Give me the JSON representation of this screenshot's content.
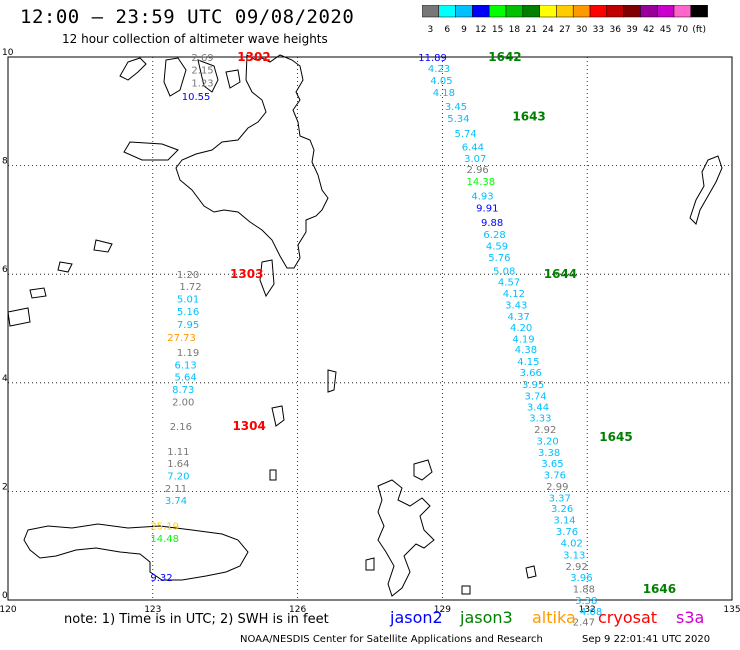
{
  "header": {
    "title": "12:00 – 23:59 UTC 09/08/2020",
    "subtitle": "12 hour collection of altimeter wave heights"
  },
  "colorbar": {
    "labels": [
      "3",
      "6",
      "9",
      "12",
      "15",
      "18",
      "21",
      "24",
      "27",
      "30",
      "33",
      "36",
      "39",
      "42",
      "45",
      "70",
      "(ft)"
    ],
    "colors": [
      "#777777",
      "#00ffff",
      "#00c0ff",
      "#0000ff",
      "#00ff00",
      "#00c000",
      "#008000",
      "#ffff00",
      "#ffcc00",
      "#ff9900",
      "#ff0000",
      "#c00000",
      "#800000",
      "#990099",
      "#cc00cc",
      "#ff66cc",
      "#000000"
    ]
  },
  "axes": {
    "x_ticks": [
      "120",
      "123",
      "126",
      "129",
      "132",
      "135"
    ],
    "y_ticks": [
      "10",
      "8",
      "6",
      "4",
      "2",
      "0"
    ]
  },
  "tracks": [
    {
      "label": "1302",
      "color": "#ff0000",
      "lon": 124.75,
      "lat": 10.0
    },
    {
      "label": "1303",
      "color": "#ff0000",
      "lon": 124.6,
      "lat": 6.0
    },
    {
      "label": "1304",
      "color": "#ff0000",
      "lon": 124.65,
      "lat": 3.2
    },
    {
      "label": "1642",
      "color": "#008000",
      "lon": 129.95,
      "lat": 10.0
    },
    {
      "label": "1643",
      "color": "#008000",
      "lon": 130.45,
      "lat": 8.9
    },
    {
      "label": "1644",
      "color": "#008000",
      "lon": 131.1,
      "lat": 6.0
    },
    {
      "label": "1645",
      "color": "#008000",
      "lon": 132.25,
      "lat": 3.0
    },
    {
      "label": "1646",
      "color": "#008000",
      "lon": 133.15,
      "lat": 0.2
    }
  ],
  "values": [
    {
      "v": "2.69",
      "c": "#777777",
      "lon": 123.8,
      "lat": 10.0
    },
    {
      "v": "2.15",
      "c": "#777777",
      "lon": 123.8,
      "lat": 9.77
    },
    {
      "v": "1.23",
      "c": "#777777",
      "lon": 123.8,
      "lat": 9.53
    },
    {
      "v": "10.55",
      "c": "#0000ff",
      "lon": 123.6,
      "lat": 9.28
    },
    {
      "v": "1.20",
      "c": "#777777",
      "lon": 123.5,
      "lat": 6.0
    },
    {
      "v": "1.72",
      "c": "#777777",
      "lon": 123.55,
      "lat": 5.78
    },
    {
      "v": "5.01",
      "c": "#00c0ff",
      "lon": 123.5,
      "lat": 5.55
    },
    {
      "v": "5.16",
      "c": "#00c0ff",
      "lon": 123.5,
      "lat": 5.32
    },
    {
      "v": "7.95",
      "c": "#00c0ff",
      "lon": 123.5,
      "lat": 5.08
    },
    {
      "v": "27.73",
      "c": "#ff9900",
      "lon": 123.3,
      "lat": 4.84
    },
    {
      "v": "1.19",
      "c": "#777777",
      "lon": 123.5,
      "lat": 4.57
    },
    {
      "v": "6.13",
      "c": "#00c0ff",
      "lon": 123.45,
      "lat": 4.34
    },
    {
      "v": "5.64",
      "c": "#00c0ff",
      "lon": 123.45,
      "lat": 4.12
    },
    {
      "v": "8.73",
      "c": "#00c0ff",
      "lon": 123.4,
      "lat": 3.89
    },
    {
      "v": "2.00",
      "c": "#777777",
      "lon": 123.4,
      "lat": 3.66
    },
    {
      "v": "2.16",
      "c": "#777777",
      "lon": 123.35,
      "lat": 3.2
    },
    {
      "v": "1.11",
      "c": "#777777",
      "lon": 123.3,
      "lat": 2.74
    },
    {
      "v": "1.64",
      "c": "#777777",
      "lon": 123.3,
      "lat": 2.52
    },
    {
      "v": "7.20",
      "c": "#00c0ff",
      "lon": 123.3,
      "lat": 2.29
    },
    {
      "v": "2.11",
      "c": "#777777",
      "lon": 123.25,
      "lat": 2.06
    },
    {
      "v": "3.74",
      "c": "#00c0ff",
      "lon": 123.25,
      "lat": 1.84
    },
    {
      "v": "25.19",
      "c": "#ffcc00",
      "lon": 122.95,
      "lat": 1.37
    },
    {
      "v": "14.48",
      "c": "#00ff00",
      "lon": 122.95,
      "lat": 1.14
    },
    {
      "v": "9.32",
      "c": "#0000ff",
      "lon": 122.95,
      "lat": 0.42
    },
    {
      "v": "11.89",
      "c": "#0000ff",
      "lon": 128.5,
      "lat": 10.0
    },
    {
      "v": "4.23",
      "c": "#00c0ff",
      "lon": 128.7,
      "lat": 9.8
    },
    {
      "v": "4.05",
      "c": "#00c0ff",
      "lon": 128.75,
      "lat": 9.58
    },
    {
      "v": "4.18",
      "c": "#00c0ff",
      "lon": 128.8,
      "lat": 9.36
    },
    {
      "v": "3.45",
      "c": "#00c0ff",
      "lon": 129.05,
      "lat": 9.1
    },
    {
      "v": "5.34",
      "c": "#00c0ff",
      "lon": 129.1,
      "lat": 8.88
    },
    {
      "v": "5.74",
      "c": "#00c0ff",
      "lon": 129.25,
      "lat": 8.6
    },
    {
      "v": "6.44",
      "c": "#00c0ff",
      "lon": 129.4,
      "lat": 8.35
    },
    {
      "v": "3.07",
      "c": "#00c0ff",
      "lon": 129.45,
      "lat": 8.14
    },
    {
      "v": "2.96",
      "c": "#777777",
      "lon": 129.5,
      "lat": 7.94
    },
    {
      "v": "14.38",
      "c": "#00ff00",
      "lon": 129.5,
      "lat": 7.72
    },
    {
      "v": "4.93",
      "c": "#00c0ff",
      "lon": 129.6,
      "lat": 7.45
    },
    {
      "v": "9.91",
      "c": "#0000ff",
      "lon": 129.7,
      "lat": 7.23
    },
    {
      "v": "9.88",
      "c": "#0000ff",
      "lon": 129.8,
      "lat": 6.96
    },
    {
      "v": "6.28",
      "c": "#00c0ff",
      "lon": 129.85,
      "lat": 6.74
    },
    {
      "v": "4.59",
      "c": "#00c0ff",
      "lon": 129.9,
      "lat": 6.53
    },
    {
      "v": "5.76",
      "c": "#00c0ff",
      "lon": 129.95,
      "lat": 6.32
    },
    {
      "v": "5.08",
      "c": "#00c0ff",
      "lon": 130.05,
      "lat": 6.07
    },
    {
      "v": "4.57",
      "c": "#00c0ff",
      "lon": 130.15,
      "lat": 5.87
    },
    {
      "v": "4.12",
      "c": "#00c0ff",
      "lon": 130.25,
      "lat": 5.65
    },
    {
      "v": "3.43",
      "c": "#00c0ff",
      "lon": 130.3,
      "lat": 5.44
    },
    {
      "v": "4.37",
      "c": "#00c0ff",
      "lon": 130.35,
      "lat": 5.23
    },
    {
      "v": "4.20",
      "c": "#00c0ff",
      "lon": 130.4,
      "lat": 5.03
    },
    {
      "v": "4.19",
      "c": "#00c0ff",
      "lon": 130.45,
      "lat": 4.82
    },
    {
      "v": "4.38",
      "c": "#00c0ff",
      "lon": 130.5,
      "lat": 4.62
    },
    {
      "v": "4.15",
      "c": "#00c0ff",
      "lon": 130.55,
      "lat": 4.4
    },
    {
      "v": "3.66",
      "c": "#00c0ff",
      "lon": 130.6,
      "lat": 4.2
    },
    {
      "v": "3.95",
      "c": "#00c0ff",
      "lon": 130.65,
      "lat": 3.98
    },
    {
      "v": "3.74",
      "c": "#00c0ff",
      "lon": 130.7,
      "lat": 3.77
    },
    {
      "v": "3.44",
      "c": "#00c0ff",
      "lon": 130.75,
      "lat": 3.56
    },
    {
      "v": "3.33",
      "c": "#00c0ff",
      "lon": 130.8,
      "lat": 3.36
    },
    {
      "v": "2.92",
      "c": "#777777",
      "lon": 130.9,
      "lat": 3.15
    },
    {
      "v": "3.20",
      "c": "#00c0ff",
      "lon": 130.95,
      "lat": 2.94
    },
    {
      "v": "3.38",
      "c": "#00c0ff",
      "lon": 130.98,
      "lat": 2.73
    },
    {
      "v": "3.65",
      "c": "#00c0ff",
      "lon": 131.05,
      "lat": 2.52
    },
    {
      "v": "3.76",
      "c": "#00c0ff",
      "lon": 131.1,
      "lat": 2.31
    },
    {
      "v": "2.99",
      "c": "#777777",
      "lon": 131.15,
      "lat": 2.1
    },
    {
      "v": "3.37",
      "c": "#00c0ff",
      "lon": 131.2,
      "lat": 1.89
    },
    {
      "v": "3.26",
      "c": "#00c0ff",
      "lon": 131.25,
      "lat": 1.69
    },
    {
      "v": "3.14",
      "c": "#00c0ff",
      "lon": 131.3,
      "lat": 1.48
    },
    {
      "v": "3.76",
      "c": "#00c0ff",
      "lon": 131.35,
      "lat": 1.27
    },
    {
      "v": "4.02",
      "c": "#00c0ff",
      "lon": 131.45,
      "lat": 1.06
    },
    {
      "v": "3.13",
      "c": "#00c0ff",
      "lon": 131.5,
      "lat": 0.84
    },
    {
      "v": "2.92",
      "c": "#777777",
      "lon": 131.55,
      "lat": 0.63
    },
    {
      "v": "3.96",
      "c": "#00c0ff",
      "lon": 131.65,
      "lat": 0.42
    },
    {
      "v": "1.88",
      "c": "#777777",
      "lon": 131.7,
      "lat": 0.21
    },
    {
      "v": "3.38",
      "c": "#00c0ff",
      "lon": 131.75,
      "lat": 0.0
    },
    {
      "v": "4.08",
      "c": "#00c0ff",
      "lon": 131.85,
      "lat": -0.2
    },
    {
      "v": "2.47",
      "c": "#777777",
      "lon": 131.7,
      "lat": -0.4
    }
  ],
  "footer": {
    "note": "note: 1) Time is in UTC; 2) SWH is in feet",
    "credit": "NOAA/NESDIS Center for Satellite Applications and Research",
    "timestamp": "Sep  9 22:01:41 UTC 2020"
  },
  "legend": [
    {
      "name": "jason2",
      "color": "#0000ff"
    },
    {
      "name": "jason3",
      "color": "#008000"
    },
    {
      "name": "altika",
      "color": "#ff9900"
    },
    {
      "name": "cryosat",
      "color": "#ff0000"
    },
    {
      "name": "s3a",
      "color": "#cc00cc"
    }
  ]
}
